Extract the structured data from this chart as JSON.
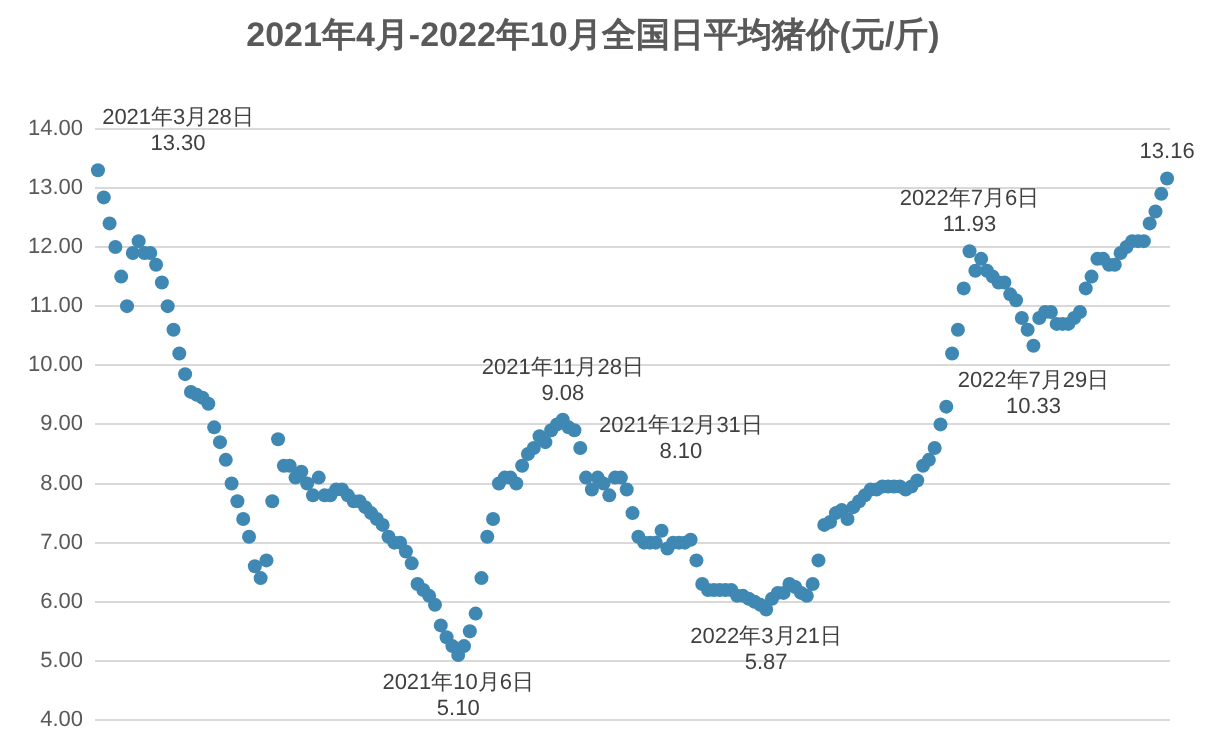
{
  "chart_data": {
    "type": "scatter",
    "title": "2021年4月-2022年10月全国日平均猪价(元/斤)",
    "categories": [
      null,
      null,
      null,
      null,
      null,
      null,
      null,
      null,
      null,
      null,
      null,
      null,
      null,
      null,
      null,
      null,
      null,
      null,
      null,
      null,
      null,
      null,
      null,
      null,
      null,
      null,
      null,
      null,
      null,
      null,
      null,
      null,
      null,
      null,
      null,
      null,
      null,
      null,
      null,
      null,
      null,
      null,
      null,
      null,
      null,
      null,
      null,
      null,
      null,
      null,
      null,
      null,
      null,
      null,
      null,
      null,
      null,
      null,
      null,
      null,
      null,
      null,
      null,
      null,
      null,
      null,
      null,
      null,
      null,
      null,
      null,
      null,
      null,
      null,
      null,
      null,
      null,
      null,
      null,
      null,
      null,
      null,
      null,
      null,
      null,
      null,
      null,
      null,
      null,
      null,
      null,
      null,
      null,
      null,
      null,
      null,
      null,
      null,
      null,
      null,
      null,
      null,
      null,
      null,
      null,
      null,
      null,
      null,
      null,
      null,
      null,
      null,
      null,
      null,
      null,
      null,
      null,
      null,
      null,
      null,
      null,
      null,
      null,
      null,
      null,
      null,
      null,
      null,
      null,
      null,
      null,
      null,
      null,
      null,
      null,
      null,
      null,
      null,
      null,
      null,
      null,
      null,
      null,
      null,
      null,
      null,
      null,
      null,
      null,
      null,
      null,
      null,
      null,
      null,
      null,
      null,
      null,
      null,
      null,
      null,
      null,
      null,
      null,
      null,
      null,
      null,
      null,
      null,
      null,
      null,
      null,
      null,
      null,
      null,
      null,
      null,
      null,
      null,
      null,
      null,
      null,
      null,
      null,
      null,
      null
    ],
    "values": [
      13.3,
      12.84,
      12.4,
      12.0,
      11.5,
      11.0,
      11.9,
      12.1,
      11.9,
      11.9,
      11.7,
      11.4,
      11.0,
      10.6,
      10.2,
      9.85,
      9.55,
      9.5,
      9.45,
      9.35,
      8.95,
      8.7,
      8.4,
      8.0,
      7.7,
      7.4,
      7.1,
      6.6,
      6.4,
      6.7,
      7.7,
      8.75,
      8.3,
      8.3,
      8.1,
      8.2,
      8.0,
      7.8,
      8.1,
      7.8,
      7.8,
      7.9,
      7.9,
      7.8,
      7.7,
      7.7,
      7.6,
      7.5,
      7.4,
      7.3,
      7.1,
      7.0,
      7.0,
      6.85,
      6.65,
      6.3,
      6.2,
      6.1,
      5.95,
      5.6,
      5.4,
      5.25,
      5.1,
      5.25,
      5.5,
      5.8,
      6.4,
      7.1,
      7.4,
      8.0,
      8.1,
      8.1,
      8.0,
      8.3,
      8.5,
      8.6,
      8.8,
      8.7,
      8.9,
      9.0,
      9.08,
      8.95,
      8.9,
      8.6,
      8.1,
      7.9,
      8.1,
      8.0,
      7.8,
      8.1,
      8.1,
      7.9,
      7.5,
      7.1,
      7.0,
      7.0,
      7.0,
      7.2,
      6.9,
      7.0,
      7.0,
      7.0,
      7.05,
      6.7,
      6.3,
      6.2,
      6.2,
      6.2,
      6.2,
      6.2,
      6.1,
      6.1,
      6.05,
      6.0,
      5.95,
      5.87,
      6.05,
      6.15,
      6.15,
      6.3,
      6.25,
      6.15,
      6.1,
      6.3,
      6.7,
      7.3,
      7.35,
      7.5,
      7.55,
      7.4,
      7.6,
      7.7,
      7.8,
      7.9,
      7.9,
      7.95,
      7.95,
      7.95,
      7.95,
      7.9,
      7.95,
      8.05,
      8.3,
      8.4,
      8.6,
      9.0,
      9.3,
      10.2,
      10.6,
      11.3,
      11.93,
      11.6,
      11.8,
      11.6,
      11.5,
      11.4,
      11.4,
      11.2,
      11.1,
      10.8,
      10.6,
      10.33,
      10.8,
      10.9,
      10.9,
      10.7,
      10.7,
      10.7,
      10.8,
      10.9,
      11.3,
      11.5,
      11.8,
      11.8,
      11.7,
      11.7,
      11.9,
      12.0,
      12.1,
      12.1,
      12.1,
      12.4,
      12.6,
      12.9,
      13.16
    ],
    "value_labels": [
      "2021年3月28日\n13.30",
      null,
      null,
      null,
      null,
      null,
      null,
      null,
      null,
      null,
      null,
      null,
      null,
      null,
      null,
      null,
      null,
      null,
      null,
      null,
      null,
      null,
      null,
      null,
      null,
      null,
      null,
      null,
      null,
      null,
      null,
      null,
      null,
      null,
      null,
      null,
      null,
      null,
      null,
      null,
      null,
      null,
      null,
      null,
      null,
      null,
      null,
      null,
      null,
      null,
      null,
      null,
      null,
      null,
      null,
      null,
      null,
      null,
      null,
      null,
      null,
      null,
      "2021年10月6日\n5.10",
      null,
      null,
      null,
      null,
      null,
      null,
      null,
      null,
      null,
      null,
      null,
      null,
      null,
      null,
      null,
      null,
      null,
      "2021年11月28日\n9.08",
      null,
      null,
      null,
      null,
      null,
      null,
      null,
      null,
      null,
      "2021年12月31日\n8.10",
      null,
      null,
      null,
      null,
      null,
      null,
      null,
      null,
      null,
      null,
      null,
      null,
      null,
      null,
      null,
      null,
      null,
      null,
      null,
      null,
      null,
      null,
      null,
      null,
      "2022年3月21日\n5.87",
      null,
      null,
      null,
      null,
      null,
      null,
      null,
      null,
      null,
      null,
      null,
      null,
      null,
      null,
      null,
      null,
      null,
      null,
      null,
      null,
      null,
      null,
      null,
      null,
      null,
      null,
      null,
      null,
      null,
      null,
      null,
      null,
      null,
      null,
      "2022年7月6日\n11.93",
      null,
      null,
      null,
      null,
      null,
      null,
      null,
      null,
      null,
      null,
      "2022年7月29日\n10.33",
      null,
      null,
      null,
      null,
      null,
      null,
      null,
      null,
      null,
      null,
      null,
      null,
      null,
      null,
      null,
      null,
      null,
      null,
      null,
      null,
      null,
      null,
      "13.16"
    ],
    "color": "#3f88b3",
    "marker": "circle",
    "grid": "y",
    "legend": false,
    "ylim": [
      4,
      14
    ],
    "yticks": [
      {
        "value": 4,
        "label": "4.00"
      },
      {
        "value": 5,
        "label": "5.00"
      },
      {
        "value": 6,
        "label": "6.00"
      },
      {
        "value": 7,
        "label": "7.00"
      },
      {
        "value": 8,
        "label": "8.00"
      },
      {
        "value": 9,
        "label": "9.00"
      },
      {
        "value": 10,
        "label": "10.00"
      },
      {
        "value": 11,
        "label": "11.00"
      },
      {
        "value": 12,
        "label": "12.00"
      },
      {
        "value": 13,
        "label": "13.00"
      },
      {
        "value": 14,
        "label": "14.00"
      }
    ]
  }
}
